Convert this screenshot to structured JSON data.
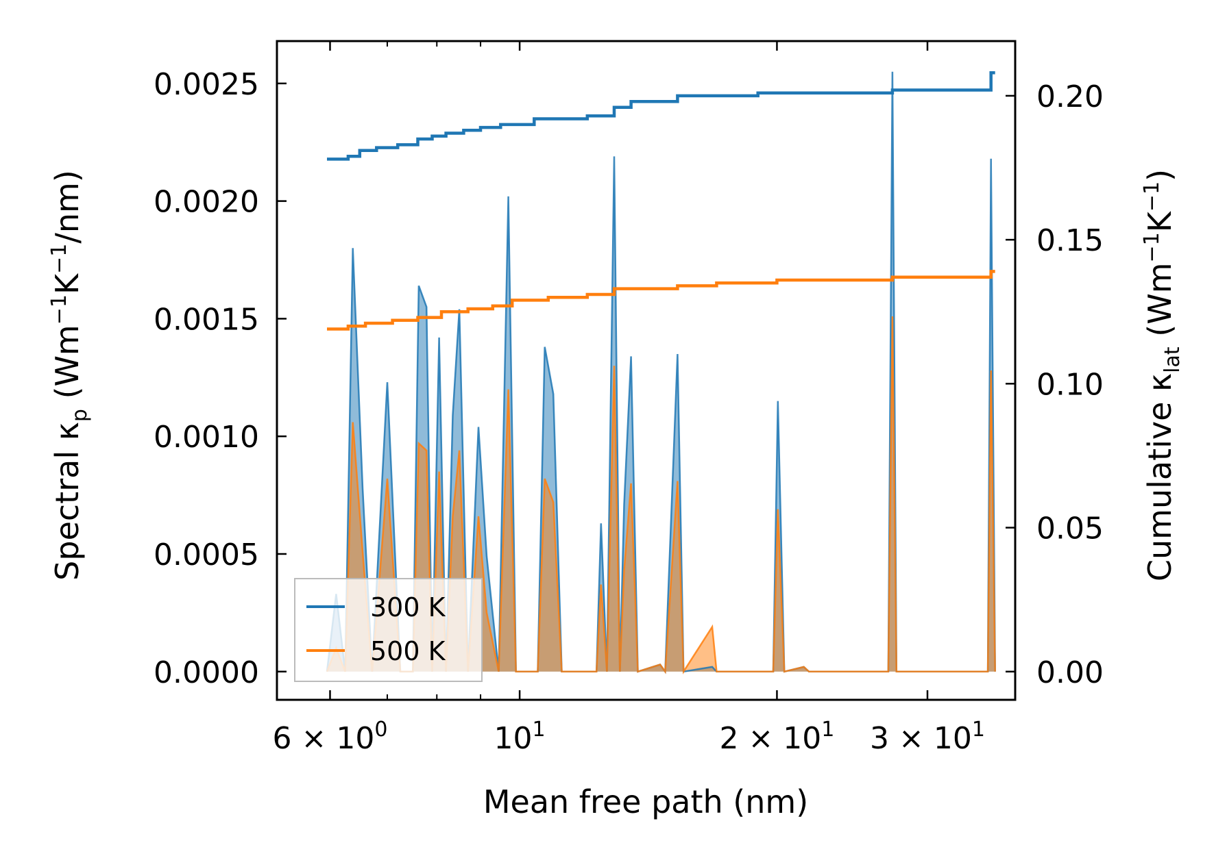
{
  "chart_data": {
    "type": "line",
    "title": "",
    "xlabel": "Mean free path (nm)",
    "x_scale": "log",
    "xlim": [
      5.2,
      38.0
    ],
    "x_ticks": [
      {
        "value": 6,
        "mantissa": "6",
        "base": "10",
        "exp": "0"
      },
      {
        "value": 10,
        "mantissa": "",
        "base": "10",
        "exp": "1"
      },
      {
        "value": 20,
        "mantissa": "2",
        "base": "10",
        "exp": "1"
      },
      {
        "value": 30,
        "mantissa": "3",
        "base": "10",
        "exp": "1"
      }
    ],
    "ylabel_left": {
      "prefix": "Spectral κ",
      "sub": "p",
      "unit_open": " (Wm",
      "exp1": "−1",
      "mid": "K",
      "exp2": "−1",
      "unit_close": "/nm)"
    },
    "ylim_left": [
      -0.00012,
      0.00268
    ],
    "y_ticks_left": [
      "0.0000",
      "0.0005",
      "0.0010",
      "0.0015",
      "0.0020",
      "0.0025"
    ],
    "ylabel_right": {
      "prefix": "Cumulative κ",
      "sub": "lat",
      "unit_open": " (Wm",
      "exp1": "−1",
      "mid": "K",
      "exp2": "−1",
      "unit_close": ")"
    },
    "ylim_right": [
      -0.0098,
      0.219
    ],
    "y_ticks_right": [
      "0.00",
      "0.05",
      "0.10",
      "0.15",
      "0.20"
    ],
    "legend": {
      "position": "lower-left",
      "entries": [
        "300 K",
        "500 K"
      ]
    },
    "colors": {
      "300 K": "#1f77b4",
      "500 K": "#ff7f0e"
    },
    "spectral_series": [
      {
        "name": "300 K",
        "points": [
          [
            5.95,
            0
          ],
          [
            6.1,
            0.00033
          ],
          [
            6.25,
            0
          ],
          [
            6.38,
            0.0018
          ],
          [
            6.55,
            0.00078
          ],
          [
            6.72,
            0
          ],
          [
            7.0,
            0.00123
          ],
          [
            7.25,
            0
          ],
          [
            7.5,
            0
          ],
          [
            7.62,
            0.00164
          ],
          [
            7.78,
            0.00155
          ],
          [
            7.9,
            0
          ],
          [
            8.05,
            0.00142
          ],
          [
            8.2,
            0
          ],
          [
            8.35,
            0.00109
          ],
          [
            8.5,
            0.00154
          ],
          [
            8.7,
            0
          ],
          [
            8.95,
            0.00104
          ],
          [
            9.15,
            0.00049
          ],
          [
            9.45,
            0
          ],
          [
            9.7,
            0.00202
          ],
          [
            9.9,
            0
          ],
          [
            10.5,
            0
          ],
          [
            10.7,
            0.00138
          ],
          [
            10.95,
            0.00118
          ],
          [
            11.2,
            0
          ],
          [
            12.3,
            0
          ],
          [
            12.45,
            0.00063
          ],
          [
            12.65,
            0
          ],
          [
            12.9,
            0.00219
          ],
          [
            13.1,
            0
          ],
          [
            13.25,
            0.00071
          ],
          [
            13.5,
            0.00134
          ],
          [
            13.75,
            0
          ],
          [
            14.6,
            3e-05
          ],
          [
            14.8,
            0
          ],
          [
            15.3,
            0.00135
          ],
          [
            15.55,
            0
          ],
          [
            16.8,
            2e-05
          ],
          [
            17.0,
            0
          ],
          [
            19.8,
            0
          ],
          [
            20.05,
            0.00115
          ],
          [
            20.4,
            0
          ],
          [
            21.5,
            2e-05
          ],
          [
            21.8,
            0
          ],
          [
            27.0,
            0
          ],
          [
            27.3,
            0.00255
          ],
          [
            27.6,
            0
          ],
          [
            35.3,
            0
          ],
          [
            35.6,
            0.00218
          ],
          [
            36.0,
            0
          ]
        ]
      },
      {
        "name": "500 K",
        "points": [
          [
            5.95,
            0
          ],
          [
            6.1,
            0.0001
          ],
          [
            6.25,
            0
          ],
          [
            6.38,
            0.00106
          ],
          [
            6.55,
            0.00051
          ],
          [
            6.72,
            0
          ],
          [
            7.0,
            0.00082
          ],
          [
            7.25,
            0
          ],
          [
            7.5,
            0
          ],
          [
            7.62,
            0.00097
          ],
          [
            7.78,
            0.00094
          ],
          [
            7.9,
            0
          ],
          [
            8.05,
            0.00085
          ],
          [
            8.2,
            0
          ],
          [
            8.35,
            0.00066
          ],
          [
            8.5,
            0.00094
          ],
          [
            8.7,
            0
          ],
          [
            8.95,
            0.00066
          ],
          [
            9.15,
            0.00025
          ],
          [
            9.45,
            0
          ],
          [
            9.7,
            0.0012
          ],
          [
            9.9,
            0
          ],
          [
            10.5,
            0
          ],
          [
            10.7,
            0.00082
          ],
          [
            10.95,
            0.00072
          ],
          [
            11.2,
            0
          ],
          [
            12.3,
            0
          ],
          [
            12.45,
            0.00037
          ],
          [
            12.65,
            0
          ],
          [
            12.9,
            0.0013
          ],
          [
            13.1,
            0
          ],
          [
            13.25,
            0.00043
          ],
          [
            13.5,
            0.0008
          ],
          [
            13.75,
            0
          ],
          [
            14.6,
            3e-05
          ],
          [
            14.8,
            0
          ],
          [
            15.3,
            0.00081
          ],
          [
            15.55,
            0
          ],
          [
            16.8,
            0.00019
          ],
          [
            17.0,
            0
          ],
          [
            19.8,
            0
          ],
          [
            20.05,
            0.00069
          ],
          [
            20.4,
            0
          ],
          [
            21.5,
            2e-05
          ],
          [
            21.8,
            0
          ],
          [
            27.0,
            0
          ],
          [
            27.3,
            0.00151
          ],
          [
            27.6,
            0
          ],
          [
            35.3,
            0
          ],
          [
            35.6,
            0.00128
          ],
          [
            36.0,
            0
          ]
        ]
      }
    ],
    "cumulative_series": [
      {
        "name": "300 K",
        "points": [
          [
            5.95,
            0.178
          ],
          [
            6.3,
            0.179
          ],
          [
            6.5,
            0.181
          ],
          [
            6.8,
            0.182
          ],
          [
            7.2,
            0.183
          ],
          [
            7.6,
            0.185
          ],
          [
            7.9,
            0.186
          ],
          [
            8.2,
            0.187
          ],
          [
            8.6,
            0.188
          ],
          [
            9.0,
            0.189
          ],
          [
            9.5,
            0.19
          ],
          [
            10.4,
            0.192
          ],
          [
            12.0,
            0.193
          ],
          [
            12.9,
            0.196
          ],
          [
            13.5,
            0.198
          ],
          [
            15.3,
            0.2
          ],
          [
            19.0,
            0.201
          ],
          [
            27.3,
            0.202
          ],
          [
            35.3,
            0.202
          ],
          [
            35.6,
            0.208
          ],
          [
            36.0,
            0.208
          ]
        ]
      },
      {
        "name": "500 K",
        "points": [
          [
            5.95,
            0.119
          ],
          [
            6.3,
            0.12
          ],
          [
            6.6,
            0.121
          ],
          [
            7.1,
            0.122
          ],
          [
            7.6,
            0.123
          ],
          [
            8.1,
            0.125
          ],
          [
            8.7,
            0.126
          ],
          [
            9.3,
            0.127
          ],
          [
            9.8,
            0.129
          ],
          [
            10.8,
            0.13
          ],
          [
            12.0,
            0.131
          ],
          [
            12.9,
            0.133
          ],
          [
            15.3,
            0.134
          ],
          [
            17.0,
            0.135
          ],
          [
            20.0,
            0.136
          ],
          [
            27.3,
            0.137
          ],
          [
            35.3,
            0.137
          ],
          [
            35.6,
            0.139
          ],
          [
            36.0,
            0.139
          ]
        ]
      }
    ]
  }
}
